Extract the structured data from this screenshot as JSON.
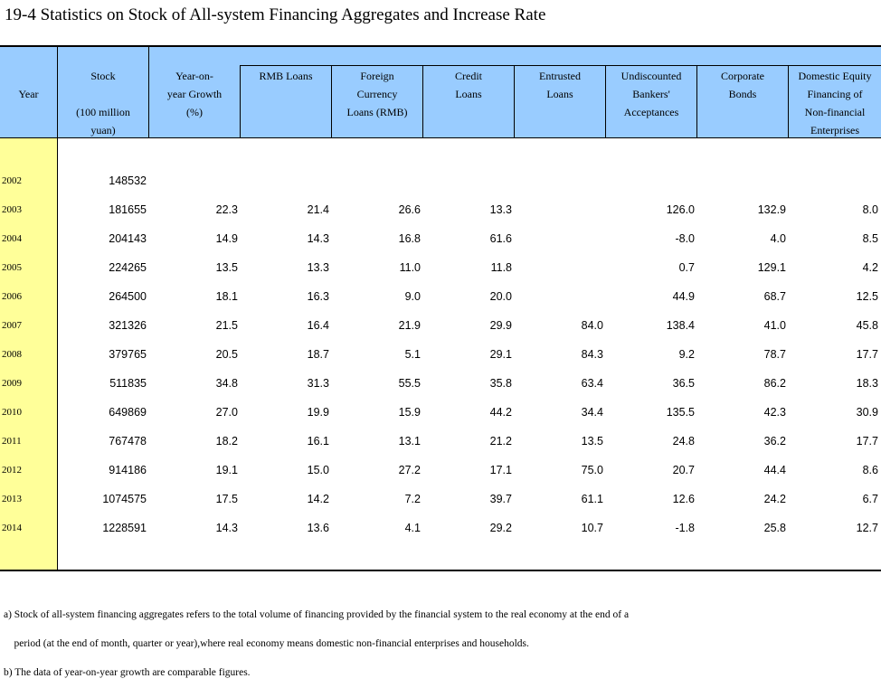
{
  "title": "19-4  Statistics on Stock of All-system Financing Aggregates and Increase Rate",
  "headers": {
    "year": "Year",
    "stock": "Stock\n\n(100 million\nyuan)",
    "growth": "Year-on-\nyear Growth\n(%)",
    "rmb": "RMB Loans",
    "foreign": "Foreign\nCurrency\nLoans (RMB)",
    "credit": "Credit\nLoans",
    "entrusted": "Entrusted\nLoans",
    "undiscounted": "Undiscounted\nBankers'\nAcceptances",
    "bonds": "Corporate\nBonds",
    "equity": "Domestic Equity\nFinancing of\nNon-financial\nEnterprises"
  },
  "rows": [
    {
      "year": "2002",
      "stock": "148532",
      "growth": "",
      "rmb": "",
      "foreign": "",
      "credit": "",
      "entrusted": "",
      "undiscounted": "",
      "bonds": "",
      "equity": ""
    },
    {
      "year": "2003",
      "stock": "181655",
      "growth": "22.3",
      "rmb": "21.4",
      "foreign": "26.6",
      "credit": "13.3",
      "entrusted": "",
      "undiscounted": "126.0",
      "bonds": "132.9",
      "equity": "8.0"
    },
    {
      "year": "2004",
      "stock": "204143",
      "growth": "14.9",
      "rmb": "14.3",
      "foreign": "16.8",
      "credit": "61.6",
      "entrusted": "",
      "undiscounted": "-8.0",
      "bonds": "4.0",
      "equity": "8.5"
    },
    {
      "year": "2005",
      "stock": "224265",
      "growth": "13.5",
      "rmb": "13.3",
      "foreign": "11.0",
      "credit": "11.8",
      "entrusted": "",
      "undiscounted": "0.7",
      "bonds": "129.1",
      "equity": "4.2"
    },
    {
      "year": "2006",
      "stock": "264500",
      "growth": "18.1",
      "rmb": "16.3",
      "foreign": "9.0",
      "credit": "20.0",
      "entrusted": "",
      "undiscounted": "44.9",
      "bonds": "68.7",
      "equity": "12.5"
    },
    {
      "year": "2007",
      "stock": "321326",
      "growth": "21.5",
      "rmb": "16.4",
      "foreign": "21.9",
      "credit": "29.9",
      "entrusted": "84.0",
      "undiscounted": "138.4",
      "bonds": "41.0",
      "equity": "45.8"
    },
    {
      "year": "2008",
      "stock": "379765",
      "growth": "20.5",
      "rmb": "18.7",
      "foreign": "5.1",
      "credit": "29.1",
      "entrusted": "84.3",
      "undiscounted": "9.2",
      "bonds": "78.7",
      "equity": "17.7"
    },
    {
      "year": "2009",
      "stock": "511835",
      "growth": "34.8",
      "rmb": "31.3",
      "foreign": "55.5",
      "credit": "35.8",
      "entrusted": "63.4",
      "undiscounted": "36.5",
      "bonds": "86.2",
      "equity": "18.3"
    },
    {
      "year": "2010",
      "stock": "649869",
      "growth": "27.0",
      "rmb": "19.9",
      "foreign": "15.9",
      "credit": "44.2",
      "entrusted": "34.4",
      "undiscounted": "135.5",
      "bonds": "42.3",
      "equity": "30.9"
    },
    {
      "year": "2011",
      "stock": "767478",
      "growth": "18.2",
      "rmb": "16.1",
      "foreign": "13.1",
      "credit": "21.2",
      "entrusted": "13.5",
      "undiscounted": "24.8",
      "bonds": "36.2",
      "equity": "17.7"
    },
    {
      "year": "2012",
      "stock": "914186",
      "growth": "19.1",
      "rmb": "15.0",
      "foreign": "27.2",
      "credit": "17.1",
      "entrusted": "75.0",
      "undiscounted": "20.7",
      "bonds": "44.4",
      "equity": "8.6"
    },
    {
      "year": "2013",
      "stock": "1074575",
      "growth": "17.5",
      "rmb": "14.2",
      "foreign": "7.2",
      "credit": "39.7",
      "entrusted": "61.1",
      "undiscounted": "12.6",
      "bonds": "24.2",
      "equity": "6.7"
    },
    {
      "year": "2014",
      "stock": "1228591",
      "growth": "14.3",
      "rmb": "13.6",
      "foreign": "4.1",
      "credit": "29.2",
      "entrusted": "10.7",
      "undiscounted": "-1.8",
      "bonds": "25.8",
      "equity": "12.7"
    }
  ],
  "notes": [
    "a) Stock of all-system financing aggregates refers to the total volume of financing provided by the financial system to the real economy at the end of a",
    "    period (at the end of month, quarter or year),where real economy means domestic non-financial enterprises and households.",
    "b) The data of year-on-year growth are comparable figures."
  ],
  "colors": {
    "header_bg": "#99ccff",
    "year_column_bg": "#ffff99"
  }
}
